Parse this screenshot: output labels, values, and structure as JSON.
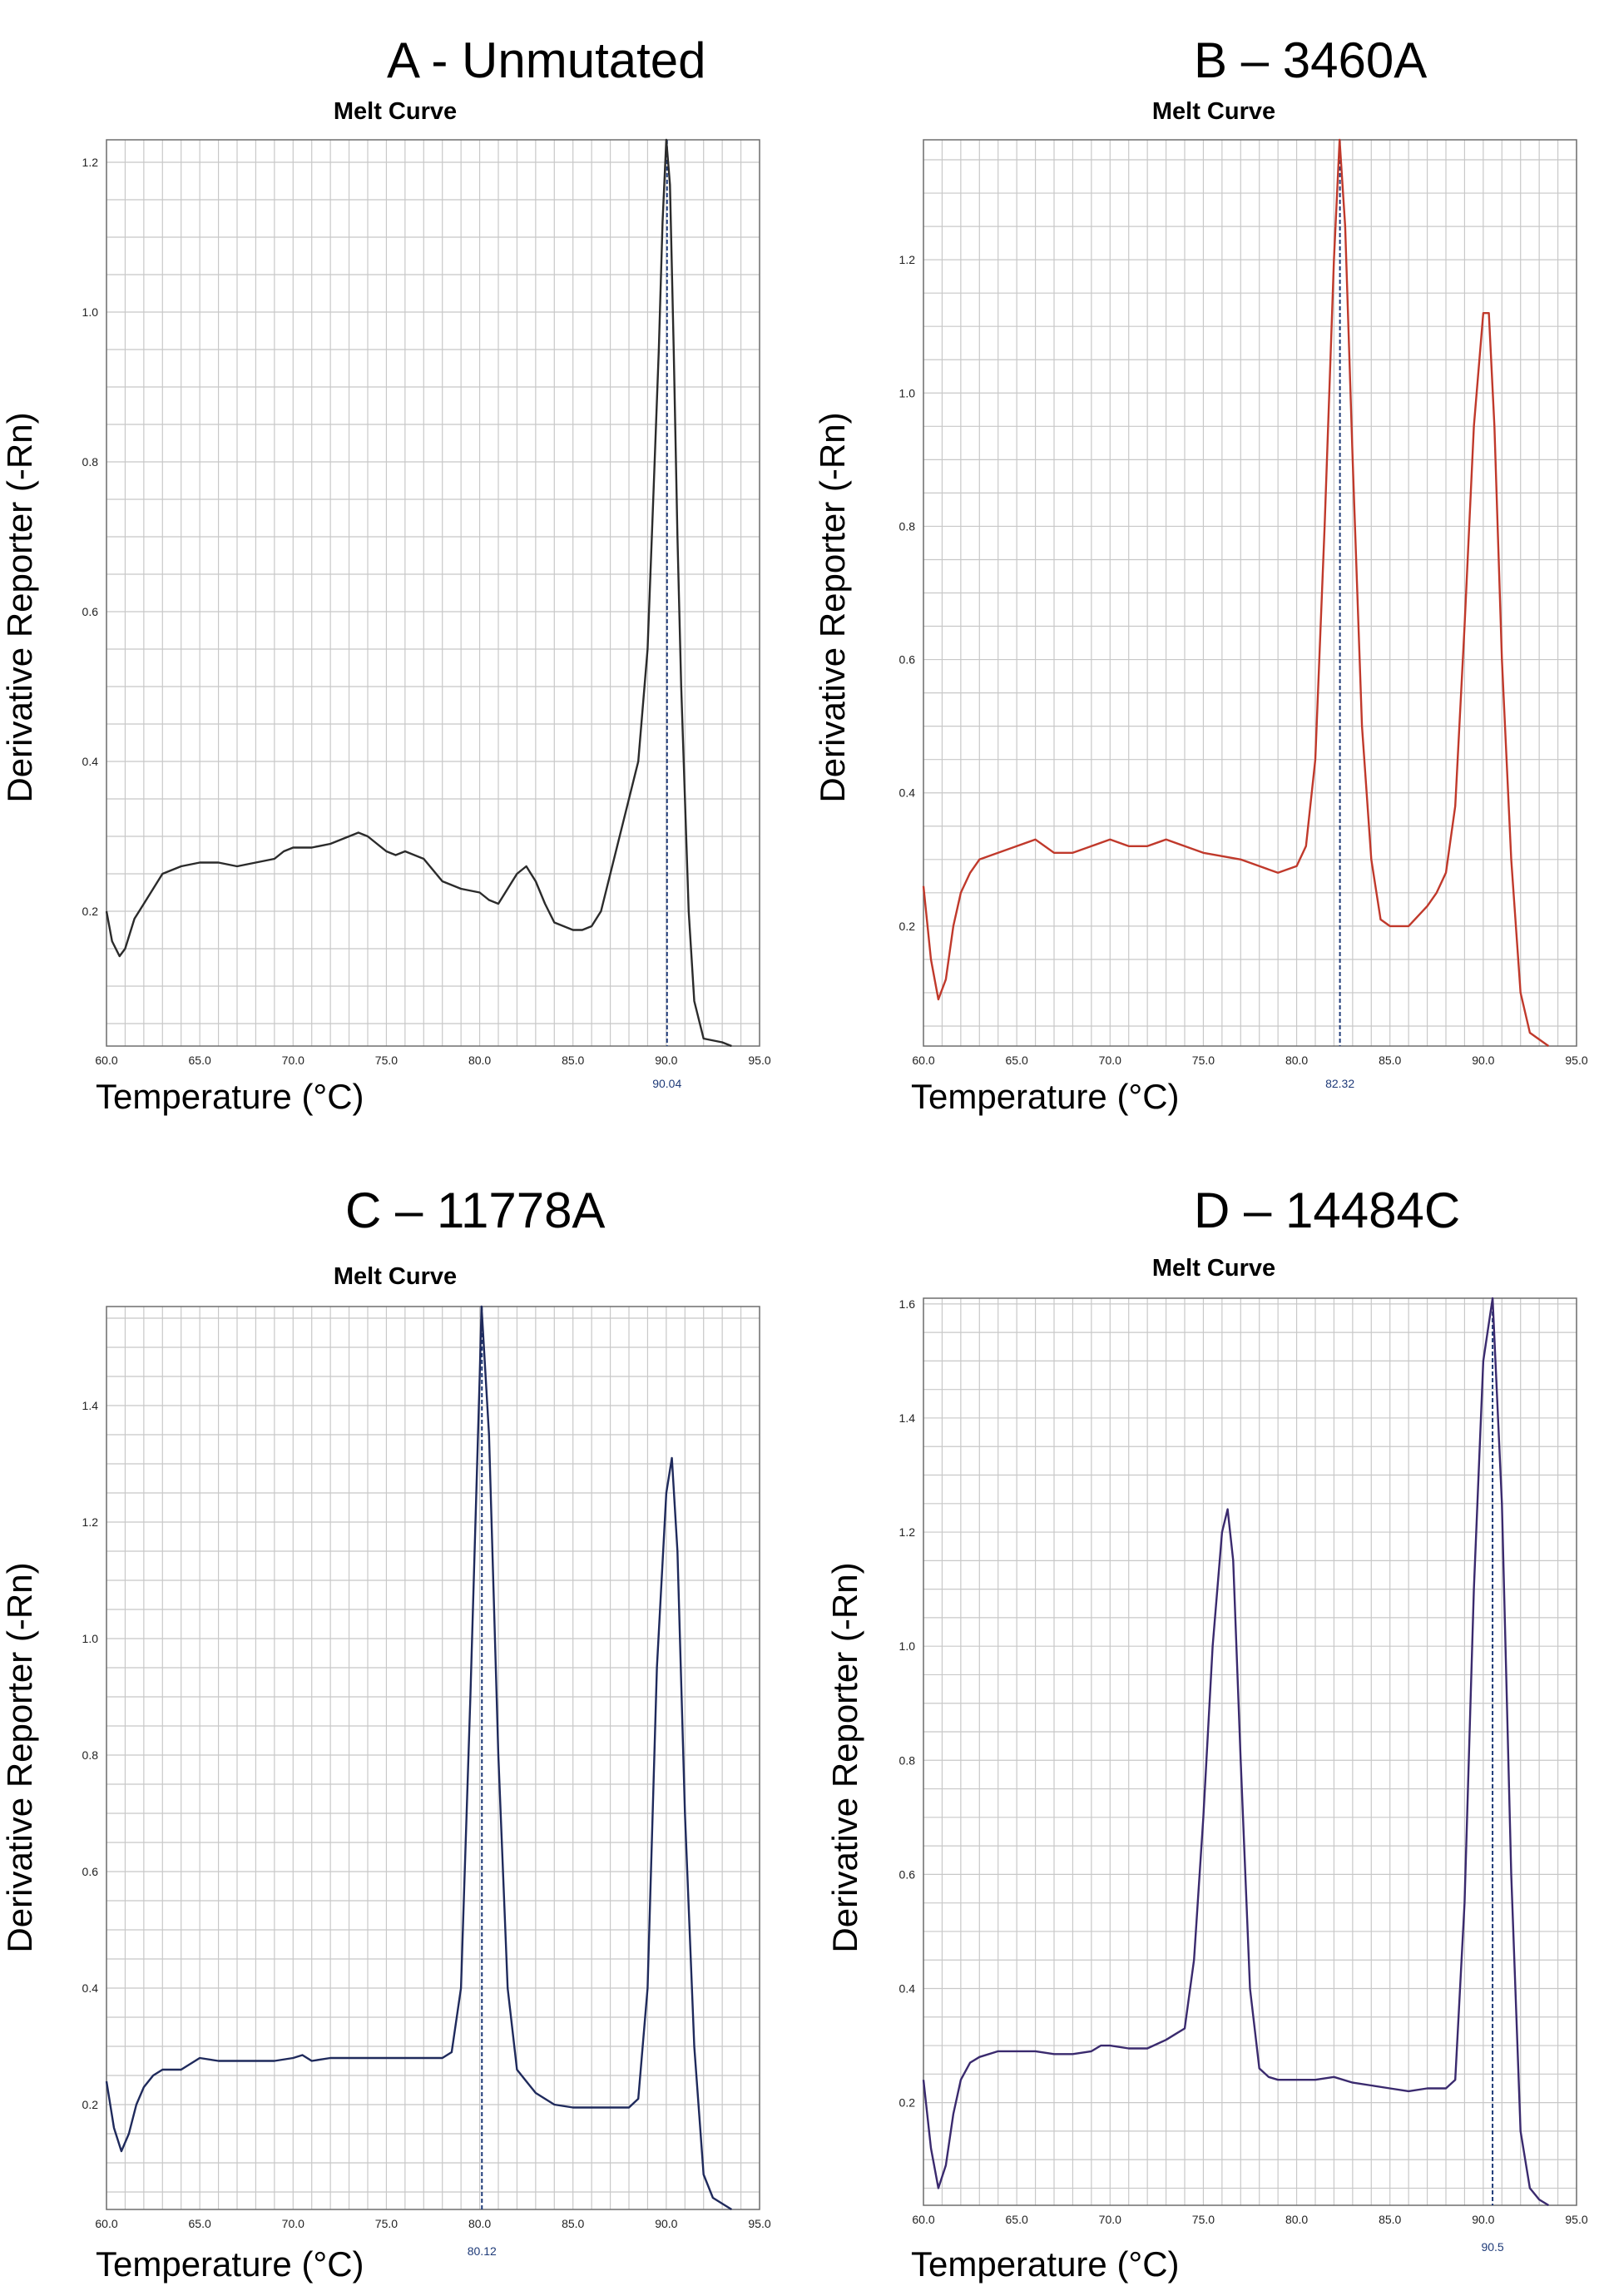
{
  "chart_data": [
    {
      "panel": "A - Unmutated",
      "type": "line",
      "title": "Melt Curve",
      "xlabel": "Temperature (°C)",
      "ylabel": "Derivative Reporter (-Rn)",
      "xlim": [
        60.0,
        95.0
      ],
      "ylim": [
        0.02,
        1.23
      ],
      "x_ticks": [
        "60.0",
        "65.0",
        "70.0",
        "75.0",
        "80.0",
        "85.0",
        "90.0",
        "95.0"
      ],
      "y_ticks": [
        "0.2",
        "0.4",
        "0.6",
        "0.8",
        "1.0",
        "1.2"
      ],
      "grid": true,
      "marker": {
        "x": 90.04,
        "label": "90.04"
      },
      "series": [
        {
          "color": "#2b2b2b",
          "x": [
            60.0,
            60.3,
            60.7,
            61.0,
            61.5,
            62.0,
            62.5,
            63.0,
            63.5,
            64.0,
            65.0,
            66.0,
            67.0,
            68.0,
            69.0,
            69.5,
            70.0,
            71.0,
            72.0,
            73.0,
            73.5,
            74.0,
            74.5,
            75.0,
            75.5,
            76.0,
            77.0,
            78.0,
            79.0,
            80.0,
            80.5,
            81.0,
            81.5,
            82.0,
            82.5,
            83.0,
            83.5,
            84.0,
            84.5,
            85.0,
            85.5,
            86.0,
            86.5,
            87.0,
            87.5,
            88.0,
            88.5,
            89.0,
            89.3,
            89.6,
            89.8,
            90.0,
            90.2,
            90.4,
            90.6,
            90.8,
            91.0,
            91.2,
            91.5,
            92.0,
            93.0,
            93.5
          ],
          "y": [
            0.2,
            0.16,
            0.14,
            0.15,
            0.19,
            0.21,
            0.23,
            0.25,
            0.255,
            0.26,
            0.265,
            0.265,
            0.26,
            0.265,
            0.27,
            0.28,
            0.285,
            0.285,
            0.29,
            0.3,
            0.305,
            0.3,
            0.29,
            0.28,
            0.275,
            0.28,
            0.27,
            0.24,
            0.23,
            0.225,
            0.215,
            0.21,
            0.23,
            0.25,
            0.26,
            0.24,
            0.21,
            0.185,
            0.18,
            0.175,
            0.175,
            0.18,
            0.2,
            0.25,
            0.3,
            0.35,
            0.4,
            0.55,
            0.75,
            0.95,
            1.12,
            1.23,
            1.17,
            0.95,
            0.7,
            0.5,
            0.35,
            0.2,
            0.08,
            0.03,
            0.025,
            0.02
          ]
        }
      ]
    },
    {
      "panel": "B – 3460A",
      "type": "line",
      "title": "Melt Curve",
      "xlabel": "Temperature (°C)",
      "ylabel": "Derivative Reporter (-Rn)",
      "xlim": [
        60.0,
        95.0
      ],
      "ylim": [
        0.02,
        1.38
      ],
      "x_ticks": [
        "60.0",
        "65.0",
        "70.0",
        "75.0",
        "80.0",
        "85.0",
        "90.0",
        "95.0"
      ],
      "y_ticks": [
        "0.2",
        "0.4",
        "0.6",
        "0.8",
        "1.0",
        "1.2"
      ],
      "grid": true,
      "marker": {
        "x": 82.32,
        "label": "82.32"
      },
      "series": [
        {
          "color": "#c0392b",
          "x": [
            60.0,
            60.4,
            60.8,
            61.2,
            61.6,
            62.0,
            62.5,
            63.0,
            64.0,
            65.0,
            66.0,
            67.0,
            68.0,
            69.0,
            70.0,
            71.0,
            72.0,
            73.0,
            74.0,
            75.0,
            76.0,
            77.0,
            78.0,
            79.0,
            80.0,
            80.5,
            81.0,
            81.5,
            82.0,
            82.3,
            82.6,
            83.0,
            83.5,
            84.0,
            84.5,
            85.0,
            86.0,
            87.0,
            87.5,
            88.0,
            88.5,
            89.0,
            89.5,
            90.0,
            90.3,
            90.6,
            91.0,
            91.5,
            92.0,
            92.5,
            93.0,
            93.5
          ],
          "y": [
            0.26,
            0.15,
            0.09,
            0.12,
            0.2,
            0.25,
            0.28,
            0.3,
            0.31,
            0.32,
            0.33,
            0.31,
            0.31,
            0.32,
            0.33,
            0.32,
            0.32,
            0.33,
            0.32,
            0.31,
            0.305,
            0.3,
            0.29,
            0.28,
            0.29,
            0.32,
            0.45,
            0.8,
            1.2,
            1.38,
            1.25,
            0.9,
            0.5,
            0.3,
            0.21,
            0.2,
            0.2,
            0.23,
            0.25,
            0.28,
            0.38,
            0.65,
            0.95,
            1.12,
            1.12,
            0.95,
            0.6,
            0.3,
            0.1,
            0.04,
            0.03,
            0.02
          ]
        }
      ]
    },
    {
      "panel": "C – 11778A",
      "type": "line",
      "title": "Melt Curve",
      "xlabel": "Temperature (°C)",
      "ylabel": "Derivative Reporter (-Rn)",
      "xlim": [
        60.0,
        95.0
      ],
      "ylim": [
        0.02,
        1.57
      ],
      "x_ticks": [
        "60.0",
        "65.0",
        "70.0",
        "75.0",
        "80.0",
        "85.0",
        "90.0",
        "95.0"
      ],
      "y_ticks": [
        "0.2",
        "0.4",
        "0.6",
        "0.8",
        "1.0",
        "1.2",
        "1.4"
      ],
      "grid": true,
      "marker": {
        "x": 80.12,
        "label": "80.12"
      },
      "series": [
        {
          "color": "#1f2a5c",
          "x": [
            60.0,
            60.4,
            60.8,
            61.2,
            61.6,
            62.0,
            62.5,
            63.0,
            63.5,
            64.0,
            65.0,
            66.0,
            67.0,
            68.0,
            69.0,
            70.0,
            70.5,
            71.0,
            72.0,
            73.0,
            74.0,
            75.0,
            76.0,
            77.0,
            78.0,
            78.5,
            79.0,
            79.5,
            80.0,
            80.1,
            80.5,
            81.0,
            81.5,
            82.0,
            82.5,
            83.0,
            84.0,
            85.0,
            86.0,
            87.0,
            88.0,
            88.5,
            89.0,
            89.5,
            90.0,
            90.3,
            90.6,
            91.0,
            91.5,
            92.0,
            92.5,
            93.0,
            93.5
          ],
          "y": [
            0.24,
            0.16,
            0.12,
            0.15,
            0.2,
            0.23,
            0.25,
            0.26,
            0.26,
            0.26,
            0.28,
            0.275,
            0.275,
            0.275,
            0.275,
            0.28,
            0.285,
            0.275,
            0.28,
            0.28,
            0.28,
            0.28,
            0.28,
            0.28,
            0.28,
            0.29,
            0.4,
            0.9,
            1.45,
            1.57,
            1.35,
            0.8,
            0.4,
            0.26,
            0.24,
            0.22,
            0.2,
            0.195,
            0.195,
            0.195,
            0.195,
            0.21,
            0.4,
            0.95,
            1.25,
            1.31,
            1.15,
            0.7,
            0.3,
            0.08,
            0.04,
            0.03,
            0.02
          ]
        }
      ]
    },
    {
      "panel": "D – 14484C",
      "type": "line",
      "title": "Melt Curve",
      "xlabel": "Temperature (°C)",
      "ylabel": "Derivative Reporter (-Rn)",
      "xlim": [
        60.0,
        95.0
      ],
      "ylim": [
        0.02,
        1.61
      ],
      "x_ticks": [
        "60.0",
        "65.0",
        "70.0",
        "75.0",
        "80.0",
        "85.0",
        "90.0",
        "95.0"
      ],
      "y_ticks": [
        "0.2",
        "0.4",
        "0.6",
        "0.8",
        "1.0",
        "1.2",
        "1.4",
        "1.6"
      ],
      "grid": true,
      "marker": {
        "x": 90.5,
        "label": "90.5"
      },
      "series": [
        {
          "color": "#3a2a6e",
          "x": [
            60.0,
            60.4,
            60.8,
            61.2,
            61.6,
            62.0,
            62.5,
            63.0,
            64.0,
            65.0,
            66.0,
            67.0,
            68.0,
            69.0,
            69.5,
            70.0,
            71.0,
            72.0,
            73.0,
            73.5,
            74.0,
            74.5,
            75.0,
            75.5,
            76.0,
            76.3,
            76.6,
            77.0,
            77.5,
            78.0,
            78.5,
            79.0,
            80.0,
            81.0,
            82.0,
            83.0,
            84.0,
            85.0,
            86.0,
            87.0,
            88.0,
            88.5,
            89.0,
            89.5,
            90.0,
            90.5,
            91.0,
            91.5,
            92.0,
            92.5,
            93.0,
            93.5
          ],
          "y": [
            0.24,
            0.12,
            0.05,
            0.09,
            0.18,
            0.24,
            0.27,
            0.28,
            0.29,
            0.29,
            0.29,
            0.285,
            0.285,
            0.29,
            0.3,
            0.3,
            0.295,
            0.295,
            0.31,
            0.32,
            0.33,
            0.45,
            0.7,
            1.0,
            1.2,
            1.24,
            1.15,
            0.8,
            0.4,
            0.26,
            0.245,
            0.24,
            0.24,
            0.24,
            0.245,
            0.235,
            0.23,
            0.225,
            0.22,
            0.225,
            0.225,
            0.24,
            0.55,
            1.1,
            1.5,
            1.61,
            1.25,
            0.6,
            0.15,
            0.05,
            0.03,
            0.02
          ]
        }
      ]
    }
  ]
}
